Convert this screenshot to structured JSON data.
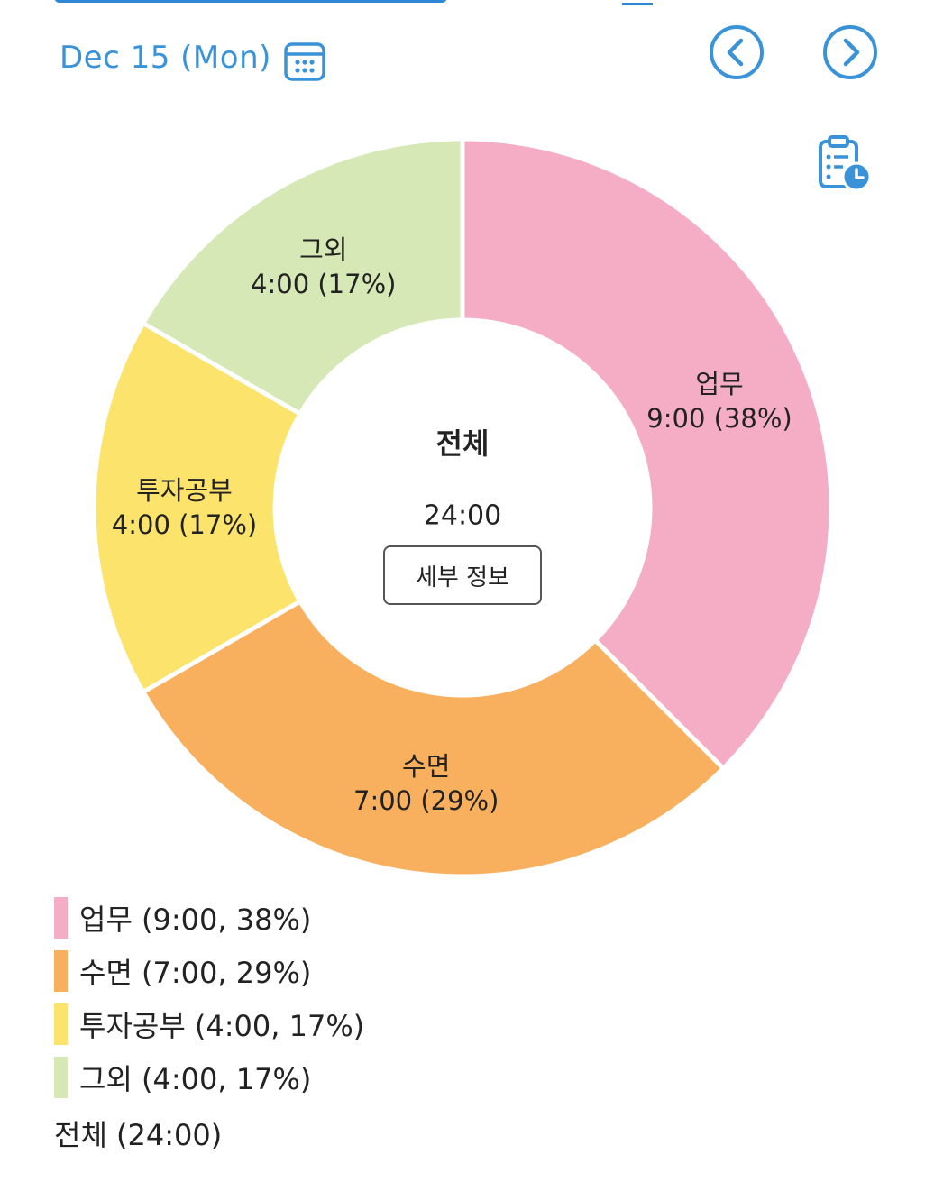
{
  "header": {
    "date_label": "Dec 15 (Mon)",
    "icons": {
      "calendar": "calendar-icon",
      "prev": "chevron-left-circle-icon",
      "next": "chevron-right-circle-icon",
      "history": "clipboard-clock-icon"
    },
    "accent_color": "#3a93d8"
  },
  "center": {
    "title": "전체",
    "total": "24:00",
    "detail_button": "세부 정보"
  },
  "chart_data": {
    "type": "pie",
    "donut": true,
    "total": "24:00",
    "slices": [
      {
        "name": "업무",
        "time": "9:00",
        "hours": 9,
        "percent": 38,
        "color": "#f5adc6",
        "label_line1": "업무",
        "label_line2": "9:00 (38%)"
      },
      {
        "name": "수면",
        "time": "7:00",
        "hours": 7,
        "percent": 29,
        "color": "#f8b05e",
        "label_line1": "수면",
        "label_line2": "7:00 (29%)"
      },
      {
        "name": "투자공부",
        "time": "4:00",
        "hours": 4,
        "percent": 17,
        "color": "#fbe36c",
        "label_line1": "투자공부",
        "label_line2": "4:00 (17%)"
      },
      {
        "name": "그외",
        "time": "4:00",
        "hours": 4,
        "percent": 17,
        "color": "#d5e8b5",
        "label_line1": "그외",
        "label_line2": "4:00 (17%)"
      }
    ]
  },
  "legend": {
    "items": [
      {
        "text": "업무 (9:00, 38%)",
        "color": "#f5adc6"
      },
      {
        "text": "수면 (7:00, 29%)",
        "color": "#f8b05e"
      },
      {
        "text": "투자공부 (4:00, 17%)",
        "color": "#fbe36c"
      },
      {
        "text": "그외 (4:00, 17%)",
        "color": "#d5e8b5"
      }
    ],
    "total_text": "전체 (24:00)"
  }
}
